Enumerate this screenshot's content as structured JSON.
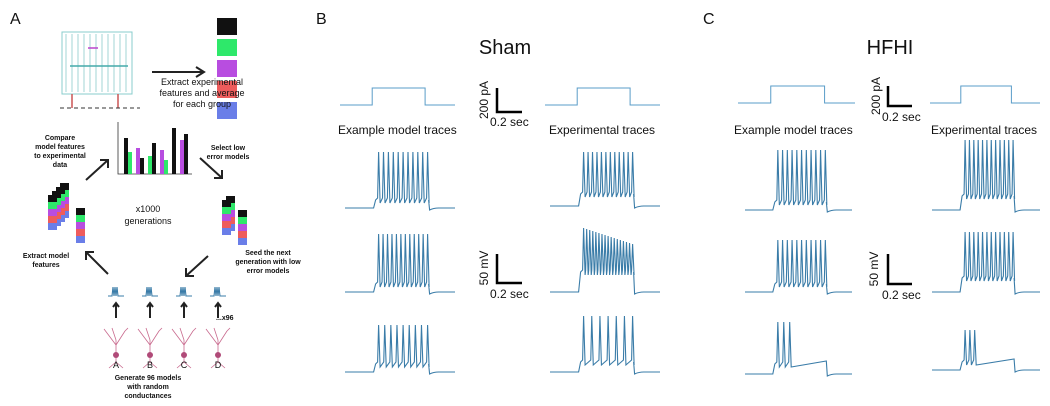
{
  "panel_a": {
    "label": "A",
    "extract_experimental": [
      "Extract experimental",
      "features and average",
      "for each group"
    ],
    "compare": [
      "Compare",
      "model features",
      "to experimental",
      "data"
    ],
    "select": [
      "Select low",
      "error models"
    ],
    "generations": [
      "x1000",
      "generations"
    ],
    "seed": [
      "Seed the next",
      "generation with low",
      "error models"
    ],
    "extract_model": [
      "Extract model",
      "features"
    ],
    "models": [
      "A",
      "B",
      "C",
      "D"
    ],
    "count": "...x96",
    "generate": [
      "Generate 96 models",
      "with random",
      "conductances"
    ]
  },
  "panel_b": {
    "label": "B",
    "title": "Sham",
    "model_traces": "Example model  traces",
    "experimental_traces": "Experimental  traces",
    "current_scale": "200 pA",
    "current_time": "0.2 sec",
    "voltage_scale": "50 mV",
    "voltage_time": "0.2 sec"
  },
  "panel_c": {
    "label": "C",
    "title": "HFHI",
    "model_traces": "Example model  traces",
    "experimental_traces": "Experimental  traces",
    "current_scale": "200 pA",
    "current_time": "0.2 sec",
    "voltage_scale": "50 mV",
    "voltage_time": "0.2 sec"
  }
}
